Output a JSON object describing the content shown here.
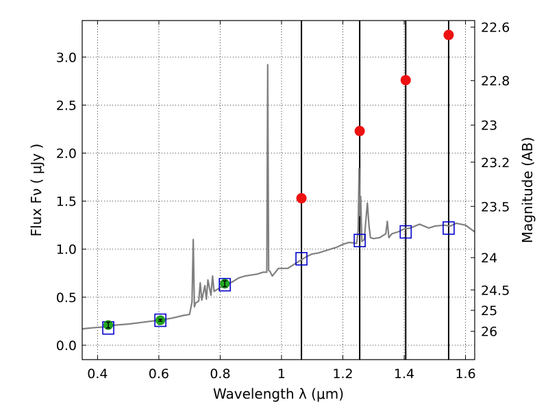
{
  "chart_data": {
    "type": "line",
    "xlabel": "Wavelength  λ (μm)",
    "ylabel": "Flux  Fν  ( μJy )",
    "ylabel_right": "Magnitude (AB)",
    "xlim": [
      0.35,
      1.63
    ],
    "ylim": [
      -0.15,
      3.38
    ],
    "grid": true,
    "x_ticks": [
      0.4,
      0.6,
      0.8,
      1.0,
      1.2,
      1.4,
      1.6
    ],
    "x_tick_labels": [
      "0.4",
      "0.6",
      "0.8",
      "1",
      "1.2",
      "1.4",
      "1.6"
    ],
    "y_ticks": [
      0.0,
      0.5,
      1.0,
      1.5,
      2.0,
      2.5,
      3.0
    ],
    "y_tick_labels": [
      "0.0",
      "0.5",
      "1.0",
      "1.5",
      "2.0",
      "2.5",
      "3.0"
    ],
    "right_ticks": [
      22.6,
      22.8,
      23,
      23.2,
      23.5,
      24,
      24.5,
      25,
      26
    ],
    "right_tick_labels": [
      "22.6",
      "22.8",
      "23",
      "23.2",
      "23.5",
      "24",
      "24.5",
      "25",
      "26"
    ],
    "vertical_lines_x": [
      1.065,
      1.255,
      1.405,
      1.545
    ],
    "spectrum": {
      "color": "#808080",
      "x": [
        0.35,
        0.38,
        0.42,
        0.46,
        0.5,
        0.55,
        0.6,
        0.64,
        0.68,
        0.7,
        0.708,
        0.712,
        0.716,
        0.72,
        0.73,
        0.735,
        0.74,
        0.75,
        0.755,
        0.76,
        0.77,
        0.775,
        0.78,
        0.8,
        0.82,
        0.84,
        0.86,
        0.88,
        0.9,
        0.92,
        0.94,
        0.952,
        0.955,
        0.958,
        0.962,
        0.97,
        0.99,
        1.02,
        1.05,
        1.08,
        1.1,
        1.12,
        1.15,
        1.18,
        1.2,
        1.22,
        1.245,
        1.25,
        1.253,
        1.255,
        1.258,
        1.262,
        1.27,
        1.275,
        1.28,
        1.285,
        1.29,
        1.3,
        1.32,
        1.34,
        1.345,
        1.35,
        1.36,
        1.38,
        1.4,
        1.42,
        1.45,
        1.48,
        1.5,
        1.53,
        1.55,
        1.57,
        1.6,
        1.63
      ],
      "y": [
        0.17,
        0.18,
        0.19,
        0.21,
        0.22,
        0.24,
        0.26,
        0.28,
        0.31,
        0.32,
        0.45,
        1.1,
        0.4,
        0.44,
        0.46,
        0.65,
        0.47,
        0.62,
        0.48,
        0.68,
        0.52,
        0.72,
        0.56,
        0.6,
        0.63,
        0.66,
        0.7,
        0.72,
        0.73,
        0.74,
        0.76,
        0.76,
        2.92,
        0.78,
        0.77,
        0.72,
        0.8,
        0.8,
        0.86,
        0.92,
        0.95,
        0.96,
        0.99,
        1.02,
        1.05,
        1.07,
        1.06,
        1.2,
        1.84,
        1.35,
        1.55,
        1.08,
        1.1,
        1.3,
        1.48,
        1.25,
        1.12,
        1.11,
        1.12,
        1.16,
        1.29,
        1.12,
        1.16,
        1.18,
        1.21,
        1.22,
        1.26,
        1.22,
        1.24,
        1.25,
        1.24,
        1.27,
        1.25,
        1.18
      ]
    },
    "model_points": {
      "marker": "open-square",
      "color": "#0000cc",
      "x": [
        0.435,
        0.605,
        0.815,
        1.065,
        1.255,
        1.405,
        1.545
      ],
      "y": [
        0.18,
        0.26,
        0.63,
        0.9,
        1.09,
        1.18,
        1.22
      ]
    },
    "observed_points": {
      "marker": "filled-circle",
      "color": "#22aa22",
      "x": [
        0.435,
        0.605,
        0.815
      ],
      "y": [
        0.21,
        0.26,
        0.64
      ],
      "yerr": [
        0.03,
        0.01,
        0.03
      ]
    },
    "upper_points": {
      "marker": "filled-circle",
      "color": "#ee1111",
      "x": [
        1.065,
        1.255,
        1.405,
        1.545
      ],
      "y": [
        1.53,
        2.23,
        2.76,
        3.23
      ]
    }
  }
}
